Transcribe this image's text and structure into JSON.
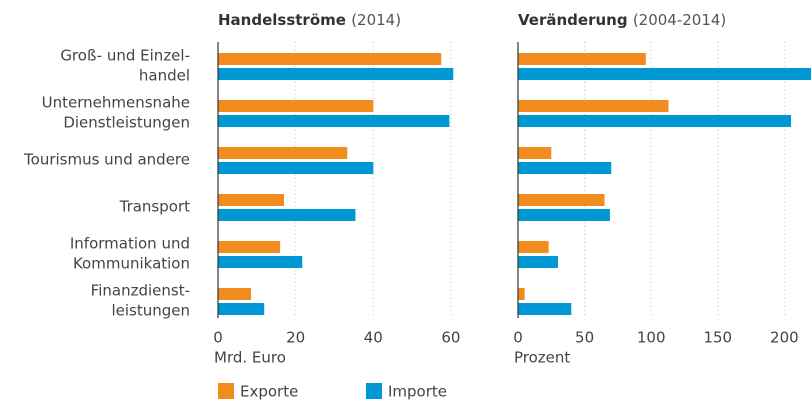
{
  "chart_data": [
    {
      "type": "bar",
      "orientation": "horizontal",
      "title": "Handelsströme",
      "subtitle": "(2014)",
      "categories": [
        [
          "Groß- und Einzel-",
          "handel"
        ],
        [
          "Unternehmensnahe",
          "Dienstleistungen"
        ],
        [
          "Tourismus und andere"
        ],
        [
          "Transport"
        ],
        [
          "Information und",
          "Kommunikation"
        ],
        [
          "Finanzdienst-",
          "leistungen"
        ]
      ],
      "series": [
        {
          "name": "Exporte",
          "color": "#f28c1e",
          "values": [
            57.5,
            40,
            33.3,
            17,
            16,
            8.5
          ]
        },
        {
          "name": "Importe",
          "color": "#0098d4",
          "values": [
            60.6,
            59.6,
            40,
            35.4,
            21.7,
            11.9
          ]
        }
      ],
      "xlim": [
        0,
        68
      ],
      "xticks": [
        0,
        20,
        40,
        60
      ],
      "xlabel": "Mrd. Euro",
      "grid": true
    },
    {
      "type": "bar",
      "orientation": "horizontal",
      "title": "Veränderung",
      "subtitle": "(2004-2014)",
      "series": [
        {
          "color": "#f28c1e",
          "values": [
            96,
            113,
            25,
            65,
            23,
            5
          ]
        },
        {
          "color": "#0098d4",
          "values": [
            220,
            205,
            70,
            69,
            30,
            40
          ]
        }
      ],
      "xlim": [
        0,
        220
      ],
      "xticks": [
        0,
        50,
        100,
        150,
        200
      ],
      "xlabel": "Prozent",
      "grid": true
    }
  ]
}
